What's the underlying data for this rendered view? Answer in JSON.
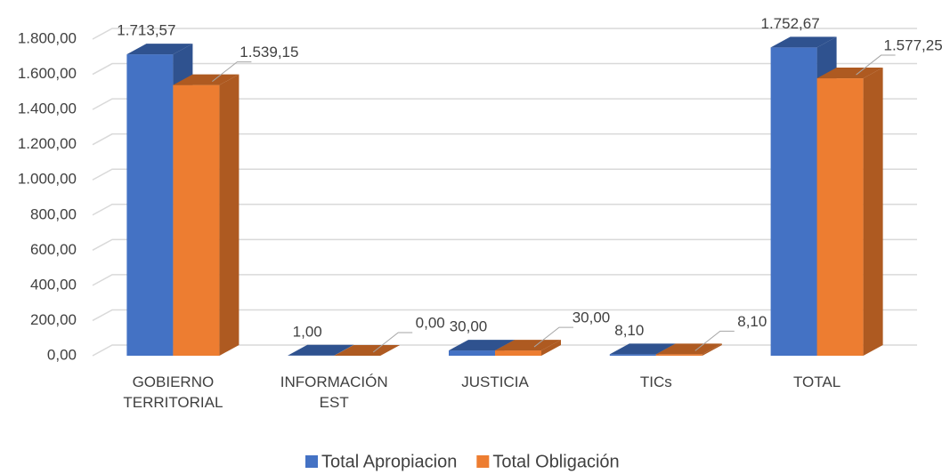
{
  "chart_data": {
    "type": "bar3d",
    "categories": [
      "GOBIERNO TERRITORIAL",
      "INFORMACIÓN EST",
      "JUSTICIA",
      "TICs",
      "TOTAL"
    ],
    "series": [
      {
        "name": "Total Apropiacion",
        "color": "#4472c4",
        "side_color": "#2f528f",
        "values": [
          1713.57,
          1,
          30,
          8.1,
          1752.67
        ],
        "value_labels": [
          "1.713,57",
          "1,00",
          "30,00",
          "8,10",
          "1.752,67"
        ]
      },
      {
        "name": "Total Obligación",
        "color": "#ed7d31",
        "side_color": "#ae5a21",
        "values": [
          1539.15,
          0,
          30,
          8.1,
          1577.25
        ],
        "value_labels": [
          "1.539,15",
          "0,00",
          "30,00",
          "8,10",
          "1.577,25"
        ]
      }
    ],
    "ylim": [
      0,
      1800
    ],
    "yticks": [
      {
        "value": 0,
        "label": "0,00"
      },
      {
        "value": 200,
        "label": "200,00"
      },
      {
        "value": 400,
        "label": "400,00"
      },
      {
        "value": 600,
        "label": "600,00"
      },
      {
        "value": 800,
        "label": "800,00"
      },
      {
        "value": 1000,
        "label": "1.000,00"
      },
      {
        "value": 1200,
        "label": "1.200,00"
      },
      {
        "value": 1400,
        "label": "1.400,00"
      },
      {
        "value": 1600,
        "label": "1.600,00"
      },
      {
        "value": 1800,
        "label": "1.800,00"
      }
    ],
    "grid": true,
    "legend": "bottom"
  }
}
